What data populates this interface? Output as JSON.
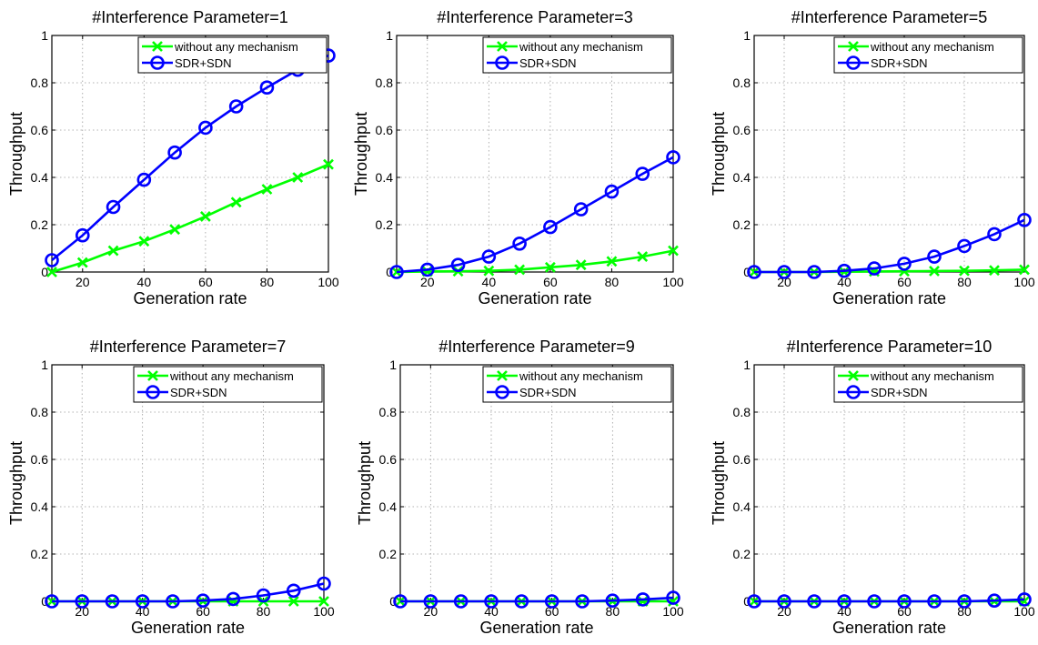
{
  "colors": {
    "series0": "#00ff00",
    "series1": "#0000ff"
  },
  "chart_data": [
    {
      "type": "line",
      "title": "#Interference Parameter=1",
      "xlabel": "Generation rate",
      "ylabel": "Throughput",
      "xlim": [
        10,
        100
      ],
      "ylim": [
        0,
        1
      ],
      "xticks": [
        20,
        40,
        60,
        80,
        100
      ],
      "yticks": [
        0,
        0.2,
        0.4,
        0.6,
        0.8,
        1
      ],
      "grid": true,
      "legend_position": "top-right",
      "x": [
        10,
        20,
        30,
        40,
        50,
        60,
        70,
        80,
        90,
        100
      ],
      "series": [
        {
          "name": "without any mechanism",
          "marker": "x",
          "values": [
            0.0,
            0.04,
            0.09,
            0.13,
            0.18,
            0.235,
            0.295,
            0.35,
            0.4,
            0.455
          ]
        },
        {
          "name": "SDR+SDN",
          "marker": "o",
          "values": [
            0.05,
            0.155,
            0.275,
            0.39,
            0.505,
            0.61,
            0.7,
            0.78,
            0.855,
            0.915
          ]
        }
      ]
    },
    {
      "type": "line",
      "title": "#Interference Parameter=3",
      "xlabel": "Generation rate",
      "ylabel": "Throughput",
      "xlim": [
        10,
        100
      ],
      "ylim": [
        0,
        1
      ],
      "xticks": [
        20,
        40,
        60,
        80,
        100
      ],
      "yticks": [
        0,
        0.2,
        0.4,
        0.6,
        0.8,
        1
      ],
      "grid": true,
      "legend_position": "top-right",
      "x": [
        10,
        20,
        30,
        40,
        50,
        60,
        70,
        80,
        90,
        100
      ],
      "series": [
        {
          "name": "without any mechanism",
          "marker": "x",
          "values": [
            0.0,
            0.002,
            0.003,
            0.005,
            0.01,
            0.02,
            0.03,
            0.045,
            0.065,
            0.09
          ]
        },
        {
          "name": "SDR+SDN",
          "marker": "o",
          "values": [
            0.0,
            0.01,
            0.03,
            0.065,
            0.12,
            0.19,
            0.265,
            0.34,
            0.415,
            0.485
          ]
        }
      ]
    },
    {
      "type": "line",
      "title": "#Interference Parameter=5",
      "xlabel": "Generation rate",
      "ylabel": "Throughput",
      "xlim": [
        10,
        100
      ],
      "ylim": [
        0,
        1
      ],
      "xticks": [
        20,
        40,
        60,
        80,
        100
      ],
      "yticks": [
        0,
        0.2,
        0.4,
        0.6,
        0.8,
        1
      ],
      "grid": true,
      "legend_position": "top-right",
      "x": [
        10,
        20,
        30,
        40,
        50,
        60,
        70,
        80,
        90,
        100
      ],
      "series": [
        {
          "name": "without any mechanism",
          "marker": "x",
          "values": [
            0.0,
            0.0,
            0.0,
            0.001,
            0.002,
            0.003,
            0.004,
            0.005,
            0.007,
            0.01
          ]
        },
        {
          "name": "SDR+SDN",
          "marker": "o",
          "values": [
            0.0,
            0.0,
            0.0,
            0.005,
            0.015,
            0.035,
            0.065,
            0.11,
            0.16,
            0.22
          ]
        }
      ]
    },
    {
      "type": "line",
      "title": "#Interference Parameter=7",
      "xlabel": "Generation rate",
      "ylabel": "Throughput",
      "xlim": [
        10,
        100
      ],
      "ylim": [
        0,
        1
      ],
      "xticks": [
        20,
        40,
        60,
        80,
        100
      ],
      "yticks": [
        0,
        0.2,
        0.4,
        0.6,
        0.8,
        1
      ],
      "grid": true,
      "legend_position": "top-right",
      "x": [
        10,
        20,
        30,
        40,
        50,
        60,
        70,
        80,
        90,
        100
      ],
      "series": [
        {
          "name": "without any mechanism",
          "marker": "x",
          "values": [
            0.0,
            0.0,
            0.0,
            0.0,
            0.0,
            0.0,
            0.0,
            0.0,
            0.0,
            0.0
          ]
        },
        {
          "name": "SDR+SDN",
          "marker": "o",
          "values": [
            0.0,
            0.0,
            0.0,
            0.0,
            0.0,
            0.003,
            0.01,
            0.025,
            0.045,
            0.075
          ]
        }
      ]
    },
    {
      "type": "line",
      "title": "#Interference Parameter=9",
      "xlabel": "Generation rate",
      "ylabel": "Throughput",
      "xlim": [
        10,
        100
      ],
      "ylim": [
        0,
        1
      ],
      "xticks": [
        20,
        40,
        60,
        80,
        100
      ],
      "yticks": [
        0,
        0.2,
        0.4,
        0.6,
        0.8,
        1
      ],
      "grid": true,
      "legend_position": "top-right",
      "x": [
        10,
        20,
        30,
        40,
        50,
        60,
        70,
        80,
        90,
        100
      ],
      "series": [
        {
          "name": "without any mechanism",
          "marker": "x",
          "values": [
            0.0,
            0.0,
            0.0,
            0.0,
            0.0,
            0.0,
            0.0,
            0.0,
            0.0,
            0.0
          ]
        },
        {
          "name": "SDR+SDN",
          "marker": "o",
          "values": [
            0.0,
            0.0,
            0.0,
            0.0,
            0.0,
            0.0,
            0.0,
            0.003,
            0.008,
            0.015
          ]
        }
      ]
    },
    {
      "type": "line",
      "title": "#Interference Parameter=10",
      "xlabel": "Generation rate",
      "ylabel": "Throughput",
      "xlim": [
        10,
        100
      ],
      "ylim": [
        0,
        1
      ],
      "xticks": [
        20,
        40,
        60,
        80,
        100
      ],
      "yticks": [
        0,
        0.2,
        0.4,
        0.6,
        0.8,
        1
      ],
      "grid": true,
      "legend_position": "top-right",
      "x": [
        10,
        20,
        30,
        40,
        50,
        60,
        70,
        80,
        90,
        100
      ],
      "series": [
        {
          "name": "without any mechanism",
          "marker": "x",
          "values": [
            0.0,
            0.0,
            0.0,
            0.0,
            0.0,
            0.0,
            0.0,
            0.0,
            0.0,
            0.0
          ]
        },
        {
          "name": "SDR+SDN",
          "marker": "o",
          "values": [
            0.0,
            0.0,
            0.0,
            0.0,
            0.0,
            0.0,
            0.0,
            0.0,
            0.003,
            0.008
          ]
        }
      ]
    }
  ]
}
